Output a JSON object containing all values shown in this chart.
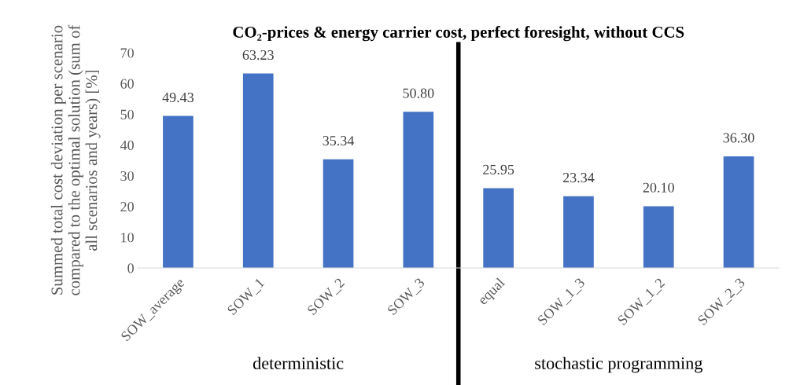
{
  "chart_data": {
    "type": "bar",
    "title": "CO₂-prices & energy carrier cost, perfect foresight, without CCS",
    "ylabel": "Summed total cost deviation per scenario\ncompared to the optimal solution (sum of\nall scenarios and years) [%]",
    "categories": [
      "SOW_average",
      "SOW_1",
      "SOW_2",
      "SOW_3",
      "equal",
      "SOW_1_3",
      "SOW_1_2",
      "SOW_2_3"
    ],
    "values": [
      49.43,
      63.23,
      35.34,
      50.8,
      25.95,
      23.34,
      20.1,
      36.3
    ],
    "value_labels": [
      "49.43",
      "63.23",
      "35.34",
      "50.80",
      "25.95",
      "23.34",
      "20.10",
      "36.30"
    ],
    "color": "#4472c4",
    "ylim": [
      0,
      70
    ],
    "yticks": [
      0,
      10,
      20,
      30,
      40,
      50,
      60,
      70
    ],
    "grid": false,
    "annotations": [
      "deterministic",
      "stochastic programming"
    ]
  }
}
